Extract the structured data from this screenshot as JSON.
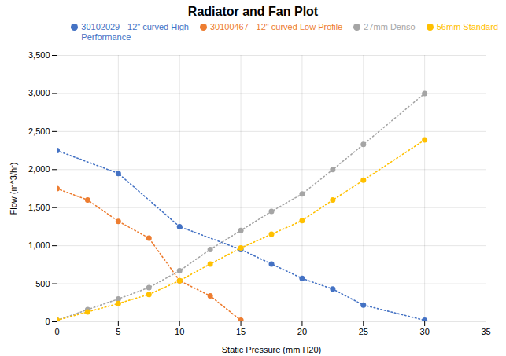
{
  "chart_data": {
    "type": "line",
    "title": "Radiator and Fan Plot",
    "xlabel": "Static Pressure (mm H20)",
    "ylabel": "Flow (m^3/hr)",
    "xlim": [
      0,
      35
    ],
    "ylim": [
      0,
      3500
    ],
    "xticks": [
      0,
      5,
      10,
      15,
      20,
      25,
      30,
      35
    ],
    "yticks": [
      0,
      500,
      1000,
      1500,
      2000,
      2500,
      3000,
      3500
    ],
    "grid": true,
    "legend": "upper right",
    "series": [
      {
        "name": "30102029 - 12\" curved High\nPerformance",
        "color": "#4472C4",
        "line_style": "dotted",
        "marker": "circle",
        "x": [
          0,
          5,
          10,
          15,
          17.5,
          20,
          22.5,
          25,
          30
        ],
        "values": [
          2250,
          1950,
          1250,
          950,
          760,
          570,
          430,
          220,
          20
        ]
      },
      {
        "name": "30100467 - 12\" curved Low Profile",
        "color": "#ED7D31",
        "line_style": "dotted",
        "marker": "circle",
        "x": [
          0,
          2.5,
          5,
          7.5,
          10,
          12.5,
          15
        ],
        "values": [
          1750,
          1600,
          1320,
          1100,
          540,
          340,
          20
        ]
      },
      {
        "name": "27mm Denso",
        "color": "#A5A5A5",
        "line_style": "dotted",
        "marker": "circle",
        "x": [
          0,
          2.5,
          5,
          7.5,
          10,
          12.5,
          15,
          17.5,
          20,
          22.5,
          25,
          30
        ],
        "values": [
          20,
          160,
          300,
          450,
          670,
          950,
          1200,
          1450,
          1680,
          2000,
          2330,
          3000
        ]
      },
      {
        "name": "56mm Standard",
        "color": "#FFC000",
        "line_style": "dotted",
        "marker": "circle",
        "x": [
          0,
          2.5,
          5,
          7.5,
          10,
          12.5,
          15,
          17.5,
          20,
          22.5,
          25,
          30
        ],
        "values": [
          20,
          130,
          240,
          360,
          540,
          760,
          970,
          1150,
          1330,
          1600,
          1860,
          2390
        ]
      }
    ]
  }
}
